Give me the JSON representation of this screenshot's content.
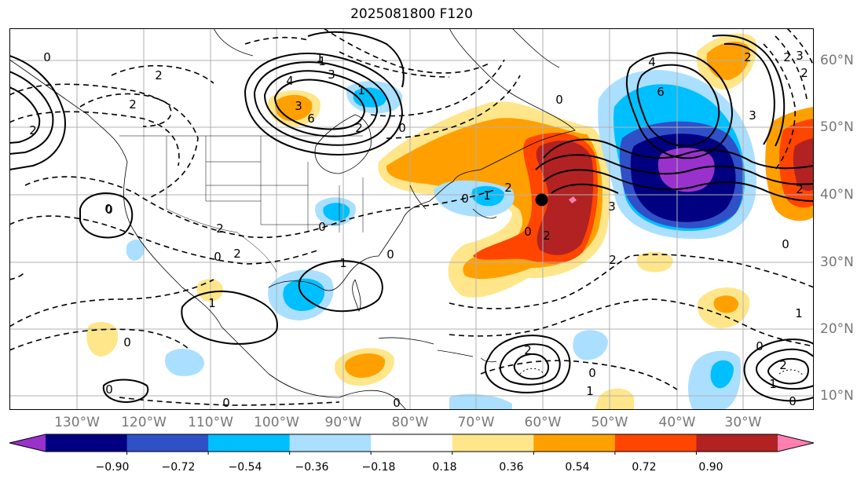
{
  "title": "2025081800 F120",
  "lon_labels": [
    "130°W",
    "120°W",
    "110°W",
    "100°W",
    "90°W",
    "80°W",
    "70°W",
    "60°W",
    "50°W",
    "40°W",
    "30°W"
  ],
  "lat_labels": [
    "60°N",
    "50°N",
    "40°N",
    "30°N",
    "20°N",
    "10°N"
  ],
  "colorbar": {
    "ticks": [
      "−0.90",
      "−0.72",
      "−0.54",
      "−0.36",
      "−0.18",
      "0.18",
      "0.36",
      "0.54",
      "0.72",
      "0.90"
    ],
    "colors": [
      "#9932cc",
      "#000080",
      "#3050c8",
      "#00bfff",
      "#aadfff",
      "#ffffff",
      "#ffe68a",
      "#ffa000",
      "#ff4500",
      "#b22222",
      "#ff80b0"
    ]
  },
  "contour_labels": [
    "0",
    "2",
    "2",
    "2",
    "1",
    "3",
    "1",
    "4",
    "3",
    "6",
    "0",
    "1",
    "2",
    "0",
    "2",
    "0",
    "0",
    "2",
    "1",
    "0",
    "0",
    "2",
    "1",
    "0",
    "2",
    "0",
    "6",
    "4",
    "3",
    "2",
    "3",
    "3",
    "2",
    "2",
    "2",
    "2",
    "0",
    "0",
    "1",
    "0",
    "0",
    "2",
    "1",
    "0",
    "0",
    "1",
    "0",
    "2",
    "0",
    "1",
    "0"
  ],
  "marker": {
    "lon": -60,
    "lat": 39.2
  }
}
